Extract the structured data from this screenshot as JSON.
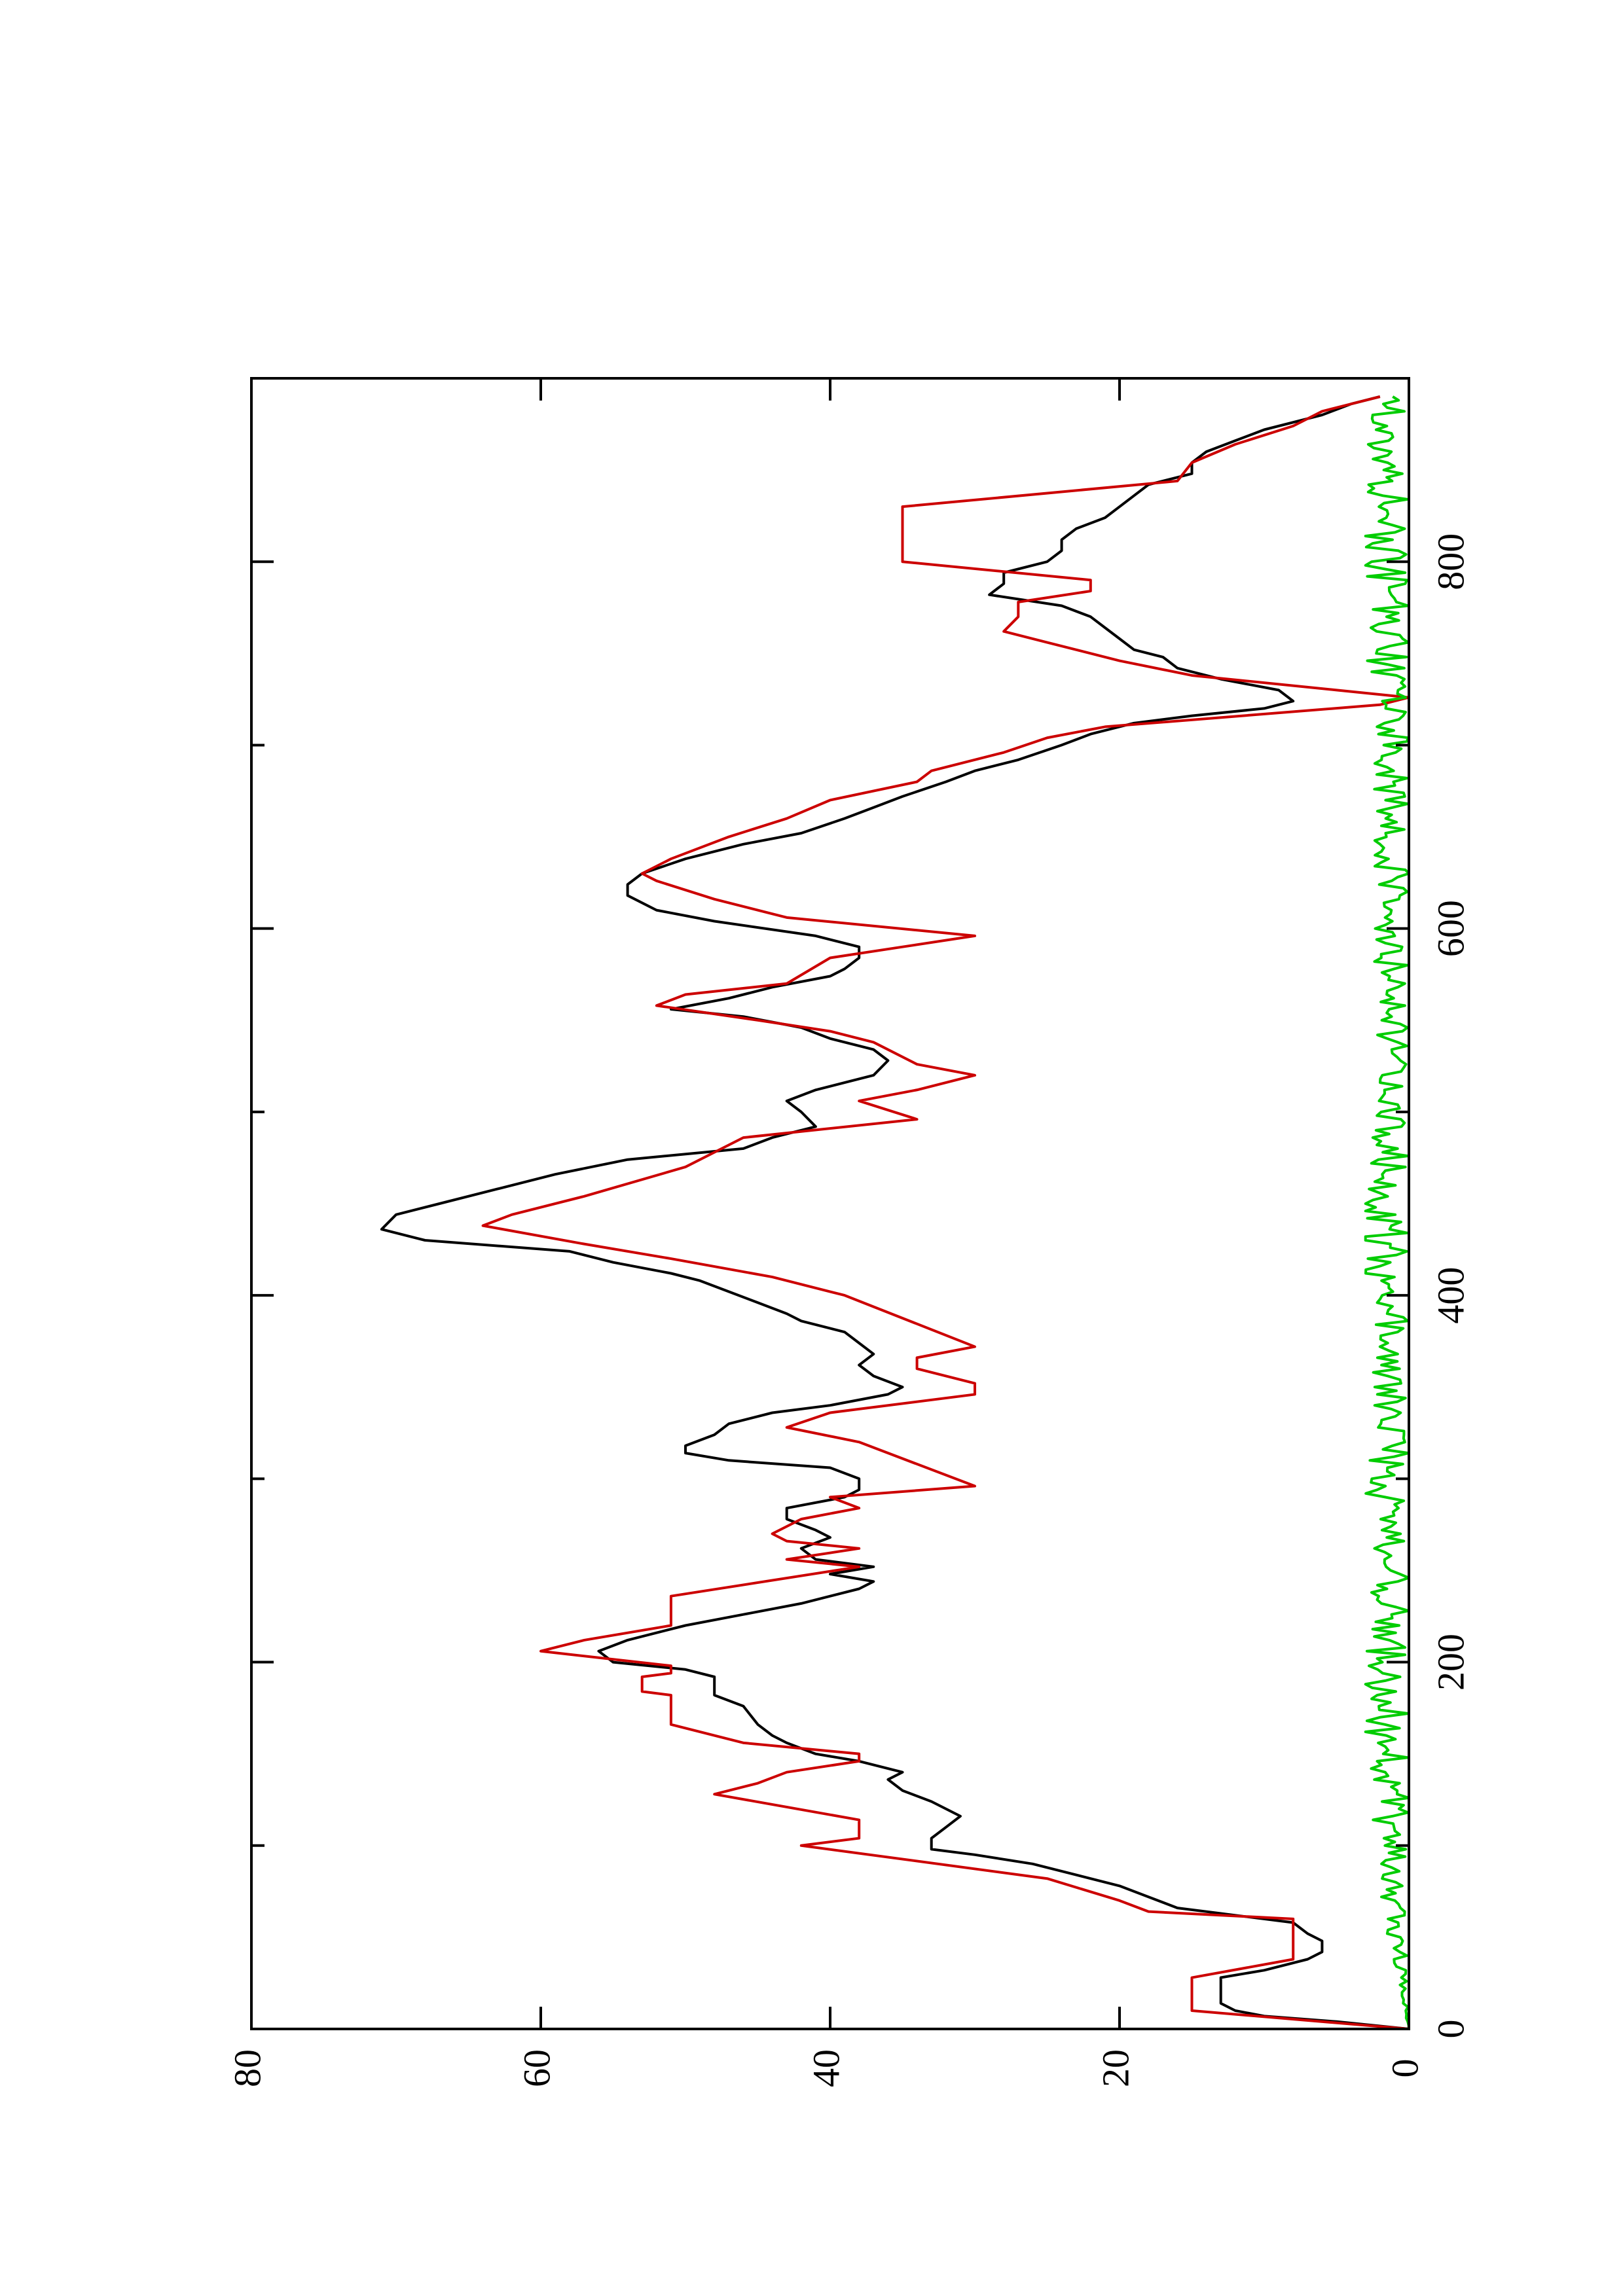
{
  "chart_data": {
    "type": "line",
    "orientation": "rotated-90-ccw",
    "title": "",
    "xlabel": "",
    "ylabel": "",
    "xlim": [
      0,
      900
    ],
    "ylim": [
      0,
      80
    ],
    "x_ticks": [
      0,
      200,
      400,
      600,
      800
    ],
    "x_tick_labels": [
      "0",
      "200",
      "400",
      "600",
      "800"
    ],
    "x_minor_ticks": [
      100,
      300,
      500,
      700
    ],
    "y_ticks": [
      0,
      20,
      40,
      60,
      80
    ],
    "y_tick_labels": [
      "0",
      "20",
      "40",
      "60",
      "80"
    ],
    "grid": false,
    "legend": "none",
    "series": [
      {
        "color": "#000000",
        "style": "line",
        "points": [
          [
            0,
            0
          ],
          [
            4,
            5
          ],
          [
            7,
            10
          ],
          [
            10,
            12
          ],
          [
            14,
            13
          ],
          [
            28,
            13
          ],
          [
            32,
            10
          ],
          [
            38,
            7
          ],
          [
            42,
            6
          ],
          [
            48,
            6
          ],
          [
            52,
            7
          ],
          [
            58,
            8
          ],
          [
            62,
            12
          ],
          [
            66,
            16
          ],
          [
            72,
            18
          ],
          [
            78,
            20
          ],
          [
            84,
            23
          ],
          [
            90,
            26
          ],
          [
            95,
            30
          ],
          [
            98,
            33
          ],
          [
            104,
            33
          ],
          [
            110,
            32
          ],
          [
            116,
            31
          ],
          [
            124,
            33
          ],
          [
            130,
            35
          ],
          [
            136,
            36
          ],
          [
            140,
            35
          ],
          [
            146,
            38
          ],
          [
            150,
            41
          ],
          [
            156,
            43
          ],
          [
            160,
            44
          ],
          [
            166,
            45
          ],
          [
            176,
            46
          ],
          [
            182,
            48
          ],
          [
            188,
            48
          ],
          [
            192,
            48
          ],
          [
            196,
            50
          ],
          [
            200,
            55
          ],
          [
            206,
            56
          ],
          [
            212,
            54
          ],
          [
            220,
            50
          ],
          [
            226,
            46
          ],
          [
            232,
            42
          ],
          [
            236,
            40
          ],
          [
            240,
            38
          ],
          [
            244,
            37
          ],
          [
            248,
            40
          ],
          [
            252,
            37
          ],
          [
            256,
            41
          ],
          [
            262,
            42
          ],
          [
            268,
            40
          ],
          [
            272,
            41
          ],
          [
            278,
            43
          ],
          [
            284,
            43
          ],
          [
            290,
            39
          ],
          [
            294,
            38
          ],
          [
            300,
            38
          ],
          [
            306,
            40
          ],
          [
            310,
            47
          ],
          [
            314,
            50
          ],
          [
            318,
            50
          ],
          [
            324,
            48
          ],
          [
            330,
            47
          ],
          [
            336,
            44
          ],
          [
            340,
            40
          ],
          [
            346,
            36
          ],
          [
            350,
            35
          ],
          [
            356,
            37
          ],
          [
            362,
            38
          ],
          [
            368,
            37
          ],
          [
            374,
            38
          ],
          [
            380,
            39
          ],
          [
            386,
            42
          ],
          [
            390,
            43
          ],
          [
            396,
            45
          ],
          [
            402,
            47
          ],
          [
            408,
            49
          ],
          [
            412,
            51
          ],
          [
            418,
            55
          ],
          [
            424,
            58
          ],
          [
            430,
            68
          ],
          [
            436,
            71
          ],
          [
            444,
            70
          ],
          [
            450,
            67
          ],
          [
            458,
            63
          ],
          [
            466,
            59
          ],
          [
            474,
            54
          ],
          [
            480,
            46
          ],
          [
            486,
            44
          ],
          [
            492,
            41
          ],
          [
            500,
            42
          ],
          [
            506,
            43
          ],
          [
            512,
            41
          ],
          [
            520,
            37
          ],
          [
            528,
            36
          ],
          [
            534,
            37
          ],
          [
            540,
            40
          ],
          [
            546,
            42
          ],
          [
            552,
            46
          ],
          [
            556,
            51
          ],
          [
            562,
            47
          ],
          [
            568,
            44
          ],
          [
            574,
            40
          ],
          [
            578,
            39
          ],
          [
            584,
            38
          ],
          [
            590,
            38
          ],
          [
            596,
            41
          ],
          [
            604,
            48
          ],
          [
            610,
            52
          ],
          [
            618,
            54
          ],
          [
            624,
            54
          ],
          [
            630,
            53
          ],
          [
            638,
            50
          ],
          [
            646,
            46
          ],
          [
            652,
            42
          ],
          [
            660,
            39
          ],
          [
            666,
            37
          ],
          [
            672,
            35
          ],
          [
            680,
            32
          ],
          [
            686,
            30
          ],
          [
            692,
            27
          ],
          [
            700,
            24
          ],
          [
            706,
            22
          ],
          [
            712,
            19
          ],
          [
            716,
            15
          ],
          [
            720,
            10
          ],
          [
            724,
            8
          ],
          [
            730,
            9
          ],
          [
            736,
            13
          ],
          [
            742,
            16
          ],
          [
            748,
            17
          ],
          [
            752,
            19
          ],
          [
            758,
            20
          ],
          [
            764,
            21
          ],
          [
            770,
            22
          ],
          [
            776,
            24
          ],
          [
            782,
            29
          ],
          [
            788,
            28
          ],
          [
            794,
            28
          ],
          [
            800,
            25
          ],
          [
            806,
            24
          ],
          [
            812,
            24
          ],
          [
            818,
            23
          ],
          [
            824,
            21
          ],
          [
            830,
            20
          ],
          [
            836,
            19
          ],
          [
            842,
            18
          ],
          [
            848,
            15
          ],
          [
            854,
            15
          ],
          [
            860,
            14
          ],
          [
            866,
            12
          ],
          [
            872,
            10
          ],
          [
            880,
            6
          ],
          [
            886,
            4
          ],
          [
            890,
            2
          ]
        ]
      },
      {
        "color": "#cc0000",
        "style": "step",
        "points": [
          [
            0,
            0
          ],
          [
            10,
            15
          ],
          [
            28,
            15
          ],
          [
            38,
            8
          ],
          [
            60,
            8
          ],
          [
            64,
            18
          ],
          [
            70,
            20
          ],
          [
            82,
            25
          ],
          [
            100,
            42
          ],
          [
            104,
            38
          ],
          [
            114,
            38
          ],
          [
            128,
            48
          ],
          [
            134,
            45
          ],
          [
            140,
            43
          ],
          [
            146,
            38
          ],
          [
            150,
            38
          ],
          [
            156,
            46
          ],
          [
            166,
            51
          ],
          [
            182,
            51
          ],
          [
            184,
            53
          ],
          [
            192,
            53
          ],
          [
            194,
            51
          ],
          [
            198,
            51
          ],
          [
            206,
            60
          ],
          [
            212,
            57
          ],
          [
            220,
            51
          ],
          [
            236,
            51
          ],
          [
            252,
            38
          ],
          [
            256,
            43
          ],
          [
            262,
            38
          ],
          [
            266,
            43
          ],
          [
            270,
            44
          ],
          [
            278,
            42
          ],
          [
            284,
            38
          ],
          [
            290,
            40
          ],
          [
            296,
            30
          ],
          [
            320,
            38
          ],
          [
            328,
            43
          ],
          [
            336,
            40
          ],
          [
            346,
            30
          ],
          [
            352,
            30
          ],
          [
            360,
            34
          ],
          [
            366,
            34
          ],
          [
            372,
            30
          ],
          [
            400,
            39
          ],
          [
            410,
            44
          ],
          [
            420,
            51
          ],
          [
            428,
            57
          ],
          [
            438,
            64
          ],
          [
            444,
            62
          ],
          [
            454,
            57
          ],
          [
            470,
            50
          ],
          [
            486,
            46
          ],
          [
            496,
            34
          ],
          [
            506,
            38
          ],
          [
            512,
            34
          ],
          [
            520,
            30
          ],
          [
            526,
            34
          ],
          [
            538,
            37
          ],
          [
            544,
            40
          ],
          [
            550,
            45
          ],
          [
            558,
            52
          ],
          [
            564,
            50
          ],
          [
            570,
            43
          ],
          [
            584,
            40
          ],
          [
            590,
            35
          ],
          [
            596,
            30
          ],
          [
            606,
            43
          ],
          [
            616,
            48
          ],
          [
            626,
            52
          ],
          [
            630,
            53
          ],
          [
            638,
            51
          ],
          [
            650,
            47
          ],
          [
            660,
            43
          ],
          [
            670,
            40
          ],
          [
            680,
            34
          ],
          [
            686,
            33
          ],
          [
            696,
            28
          ],
          [
            704,
            25
          ],
          [
            710,
            21
          ],
          [
            722,
            2
          ],
          [
            726,
            0
          ],
          [
            730,
            5
          ],
          [
            738,
            15
          ],
          [
            746,
            20
          ],
          [
            756,
            25
          ],
          [
            762,
            28
          ],
          [
            770,
            27
          ],
          [
            778,
            27
          ],
          [
            784,
            22
          ],
          [
            790,
            22
          ],
          [
            800,
            35
          ],
          [
            808,
            35
          ],
          [
            830,
            35
          ],
          [
            844,
            16
          ],
          [
            854,
            15
          ],
          [
            864,
            12
          ],
          [
            874,
            8
          ],
          [
            882,
            6
          ],
          [
            890,
            2
          ]
        ]
      },
      {
        "color": "#00cc00",
        "style": "noise",
        "amplitude_max": 3,
        "points": [
          [
            0,
            0
          ],
          [
            50,
            1
          ],
          [
            100,
            1.5
          ],
          [
            150,
            2
          ],
          [
            200,
            2
          ],
          [
            250,
            1.5
          ],
          [
            300,
            2
          ],
          [
            350,
            1.5
          ],
          [
            400,
            2
          ],
          [
            450,
            2
          ],
          [
            500,
            1.5
          ],
          [
            550,
            1.5
          ],
          [
            600,
            1.5
          ],
          [
            650,
            1.5
          ],
          [
            700,
            1.5
          ],
          [
            750,
            2
          ],
          [
            800,
            2
          ],
          [
            850,
            2
          ],
          [
            890,
            1.5
          ]
        ]
      }
    ]
  }
}
